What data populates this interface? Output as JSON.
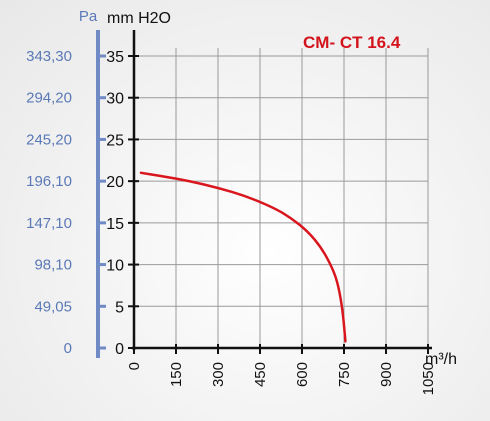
{
  "chart_data": {
    "type": "line",
    "title": "CM- CT 16.4",
    "left_axis_unit": "Pa",
    "right_axis_unit": "mm H2O",
    "x_unit": "m³/h",
    "x_ticks": [
      "0",
      "150",
      "300",
      "450",
      "600",
      "750",
      "900",
      "1050"
    ],
    "y_ticks_mm": [
      "0",
      "5",
      "10",
      "15",
      "20",
      "25",
      "30",
      "35"
    ],
    "y_ticks_pa": [
      "0",
      "49,05",
      "98,10",
      "147,10",
      "196,10",
      "245,20",
      "294,20",
      "343,30"
    ],
    "xlim": [
      0,
      1050
    ],
    "ylim": [
      0,
      35
    ],
    "grid": true,
    "series": [
      {
        "color": "#d9161e",
        "points": [
          [
            25,
            21.0
          ],
          [
            100,
            20.6
          ],
          [
            200,
            20.0
          ],
          [
            300,
            19.2
          ],
          [
            400,
            18.2
          ],
          [
            500,
            16.8
          ],
          [
            560,
            15.6
          ],
          [
            620,
            14.0
          ],
          [
            670,
            12.0
          ],
          [
            710,
            9.5
          ],
          [
            730,
            7.5
          ],
          [
            745,
            4.5
          ],
          [
            752,
            2.0
          ],
          [
            755,
            0.8
          ]
        ]
      }
    ]
  }
}
